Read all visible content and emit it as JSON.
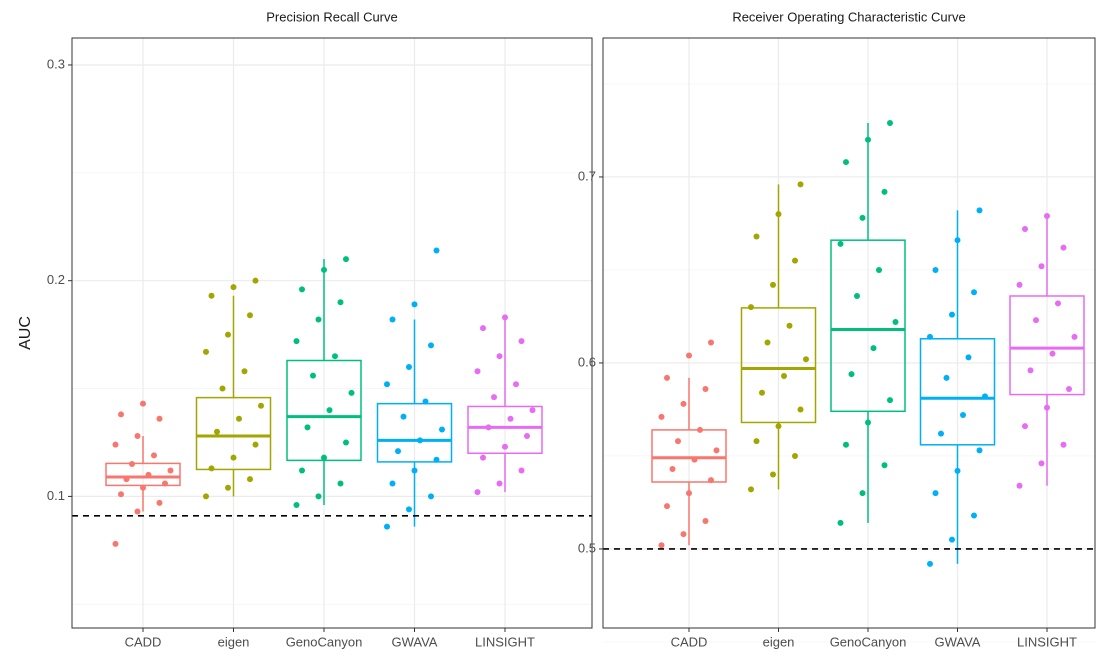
{
  "chart_data": [
    {
      "type": "box",
      "title": "Precision Recall Curve",
      "ylabel": "AUC",
      "categories": [
        "CADD",
        "eigen",
        "GenoCanyon",
        "GWAVA",
        "LINSIGHT"
      ],
      "colors": [
        "#F8766D",
        "#A3A500",
        "#00BF7D",
        "#00B0F6",
        "#E76BF3"
      ],
      "min": [
        0.093,
        0.1,
        0.096,
        0.086,
        0.102
      ],
      "q1": [
        0.1051,
        0.1125,
        0.1167,
        0.116,
        0.12
      ],
      "median": [
        0.109,
        0.128,
        0.137,
        0.126,
        0.132
      ],
      "q3": [
        0.1153,
        0.1458,
        0.163,
        0.143,
        0.1417
      ],
      "max": [
        0.128,
        0.193,
        0.21,
        0.182,
        0.183
      ],
      "points": [
        [
          0.078,
          0.093,
          0.097,
          0.101,
          0.104,
          0.106,
          0.108,
          0.11,
          0.112,
          0.115,
          0.119,
          0.124,
          0.128,
          0.136,
          0.138,
          0.143
        ],
        [
          0.1,
          0.104,
          0.108,
          0.113,
          0.118,
          0.124,
          0.13,
          0.136,
          0.142,
          0.15,
          0.158,
          0.167,
          0.175,
          0.184,
          0.193,
          0.197,
          0.2
        ],
        [
          0.096,
          0.1,
          0.106,
          0.112,
          0.118,
          0.125,
          0.132,
          0.14,
          0.148,
          0.156,
          0.165,
          0.172,
          0.182,
          0.19,
          0.196,
          0.205,
          0.21
        ],
        [
          0.086,
          0.094,
          0.1,
          0.106,
          0.112,
          0.117,
          0.121,
          0.126,
          0.131,
          0.137,
          0.144,
          0.152,
          0.16,
          0.17,
          0.182,
          0.189,
          0.214
        ],
        [
          0.102,
          0.106,
          0.112,
          0.118,
          0.123,
          0.128,
          0.132,
          0.136,
          0.14,
          0.146,
          0.152,
          0.158,
          0.165,
          0.172,
          0.178,
          0.183
        ]
      ],
      "hline": 0.091,
      "ylim": [
        0.039,
        0.3125
      ],
      "yticks": [
        0.1,
        0.2,
        0.3
      ],
      "yminor": [
        0.05,
        0.15,
        0.25
      ],
      "grid": true
    },
    {
      "type": "box",
      "title": "Receiver Operating Characteristic Curve",
      "categories": [
        "CADD",
        "eigen",
        "GenoCanyon",
        "GWAVA",
        "LINSIGHT"
      ],
      "colors": [
        "#F8766D",
        "#A3A500",
        "#00BF7D",
        "#00B0F6",
        "#E76BF3"
      ],
      "min": [
        0.502,
        0.532,
        0.514,
        0.492,
        0.534
      ],
      "q1": [
        0.536,
        0.568,
        0.574,
        0.556,
        0.583
      ],
      "median": [
        0.549,
        0.597,
        0.618,
        0.581,
        0.608
      ],
      "q3": [
        0.564,
        0.6296,
        0.666,
        0.613,
        0.636
      ],
      "max": [
        0.592,
        0.696,
        0.729,
        0.682,
        0.679
      ],
      "points": [
        [
          0.502,
          0.508,
          0.515,
          0.523,
          0.53,
          0.537,
          0.543,
          0.548,
          0.553,
          0.558,
          0.564,
          0.571,
          0.578,
          0.586,
          0.592,
          0.604,
          0.611
        ],
        [
          0.532,
          0.54,
          0.55,
          0.558,
          0.566,
          0.575,
          0.584,
          0.593,
          0.602,
          0.611,
          0.62,
          0.63,
          0.642,
          0.655,
          0.668,
          0.68,
          0.696
        ],
        [
          0.514,
          0.53,
          0.545,
          0.556,
          0.568,
          0.58,
          0.594,
          0.608,
          0.622,
          0.636,
          0.65,
          0.664,
          0.678,
          0.692,
          0.708,
          0.72,
          0.729
        ],
        [
          0.492,
          0.505,
          0.518,
          0.53,
          0.542,
          0.553,
          0.562,
          0.572,
          0.582,
          0.592,
          0.603,
          0.614,
          0.626,
          0.638,
          0.65,
          0.666,
          0.682
        ],
        [
          0.534,
          0.546,
          0.556,
          0.566,
          0.576,
          0.586,
          0.596,
          0.605,
          0.614,
          0.623,
          0.632,
          0.642,
          0.652,
          0.662,
          0.672,
          0.679
        ]
      ],
      "hline": 0.5,
      "ylim": [
        0.4575,
        0.7747
      ],
      "yticks": [
        0.5,
        0.6,
        0.7
      ],
      "yminor": [
        0.45,
        0.55,
        0.65,
        0.75
      ],
      "grid": true
    }
  ]
}
